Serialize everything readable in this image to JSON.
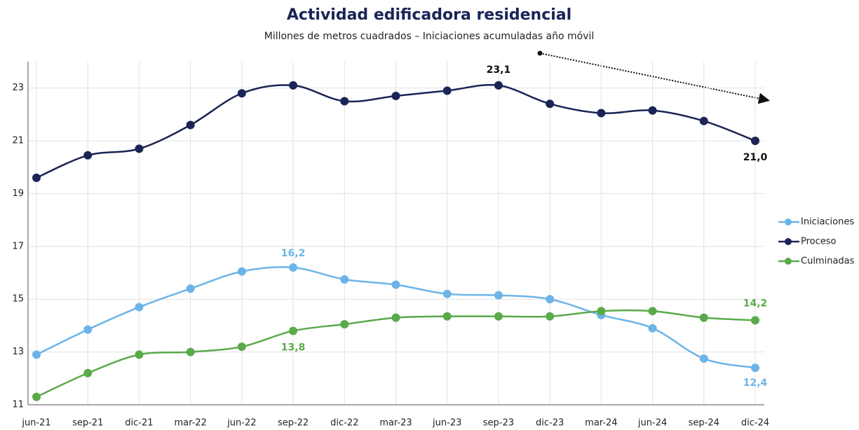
{
  "chart_data": {
    "type": "line",
    "title": "Actividad edificadora residencial",
    "subtitle": "Millones de metros cuadrados – Iniciaciones acumuladas año móvil",
    "categories": [
      "jun-21",
      "sep-21",
      "dic-21",
      "mar-22",
      "jun-22",
      "sep-22",
      "dic-22",
      "mar-23",
      "jun-23",
      "sep-23",
      "dic-23",
      "mar-24",
      "jun-24",
      "sep-24",
      "dic-24"
    ],
    "series": [
      {
        "name": "Iniciaciones",
        "color": "#6cb4e8",
        "values": [
          12.9,
          13.85,
          14.7,
          15.4,
          16.05,
          16.2,
          15.75,
          15.55,
          15.2,
          15.15,
          15.0,
          14.4,
          13.9,
          12.75,
          12.4
        ],
        "value_labels": [
          null,
          null,
          null,
          null,
          null,
          "16,2",
          null,
          null,
          null,
          null,
          null,
          null,
          null,
          null,
          "12,4"
        ]
      },
      {
        "name": "Proceso",
        "color": "#1a2456",
        "values": [
          19.6,
          20.45,
          20.7,
          21.6,
          22.8,
          23.1,
          22.5,
          22.7,
          22.9,
          23.1,
          22.4,
          22.05,
          22.15,
          21.75,
          21.0
        ],
        "value_labels": [
          null,
          null,
          null,
          null,
          null,
          null,
          null,
          null,
          null,
          "23,1",
          null,
          null,
          null,
          null,
          "21,0"
        ]
      },
      {
        "name": "Culminadas",
        "color": "#5aaa4a",
        "values": [
          11.3,
          12.2,
          12.9,
          13.0,
          13.2,
          13.8,
          14.05,
          14.3,
          14.35,
          14.35,
          14.35,
          14.55,
          14.55,
          14.3,
          14.2
        ],
        "value_labels": [
          null,
          null,
          null,
          null,
          null,
          "13,8",
          null,
          null,
          null,
          null,
          null,
          null,
          null,
          null,
          "14,2"
        ]
      }
    ],
    "ylim": [
      11,
      24
    ],
    "yticks": [
      11,
      13,
      15,
      17,
      19,
      21,
      23
    ],
    "grid": true,
    "legend": "right"
  }
}
